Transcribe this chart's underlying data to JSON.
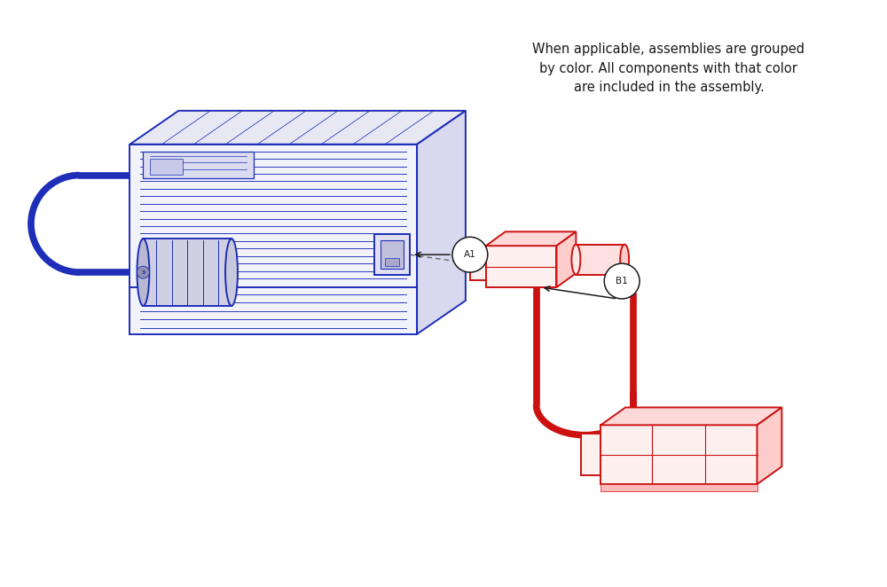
{
  "note_text": "When applicable, assemblies are grouped\nby color. All components with that color\nare included in the assembly.",
  "blue_color": "#1e2eb8",
  "red_color": "#cc1111",
  "dark_color": "#1a1a1a",
  "background": "#ffffff",
  "label_A1": "A1",
  "label_B1": "B1",
  "figsize": [
    10.0,
    6.62
  ],
  "dpi": 100
}
